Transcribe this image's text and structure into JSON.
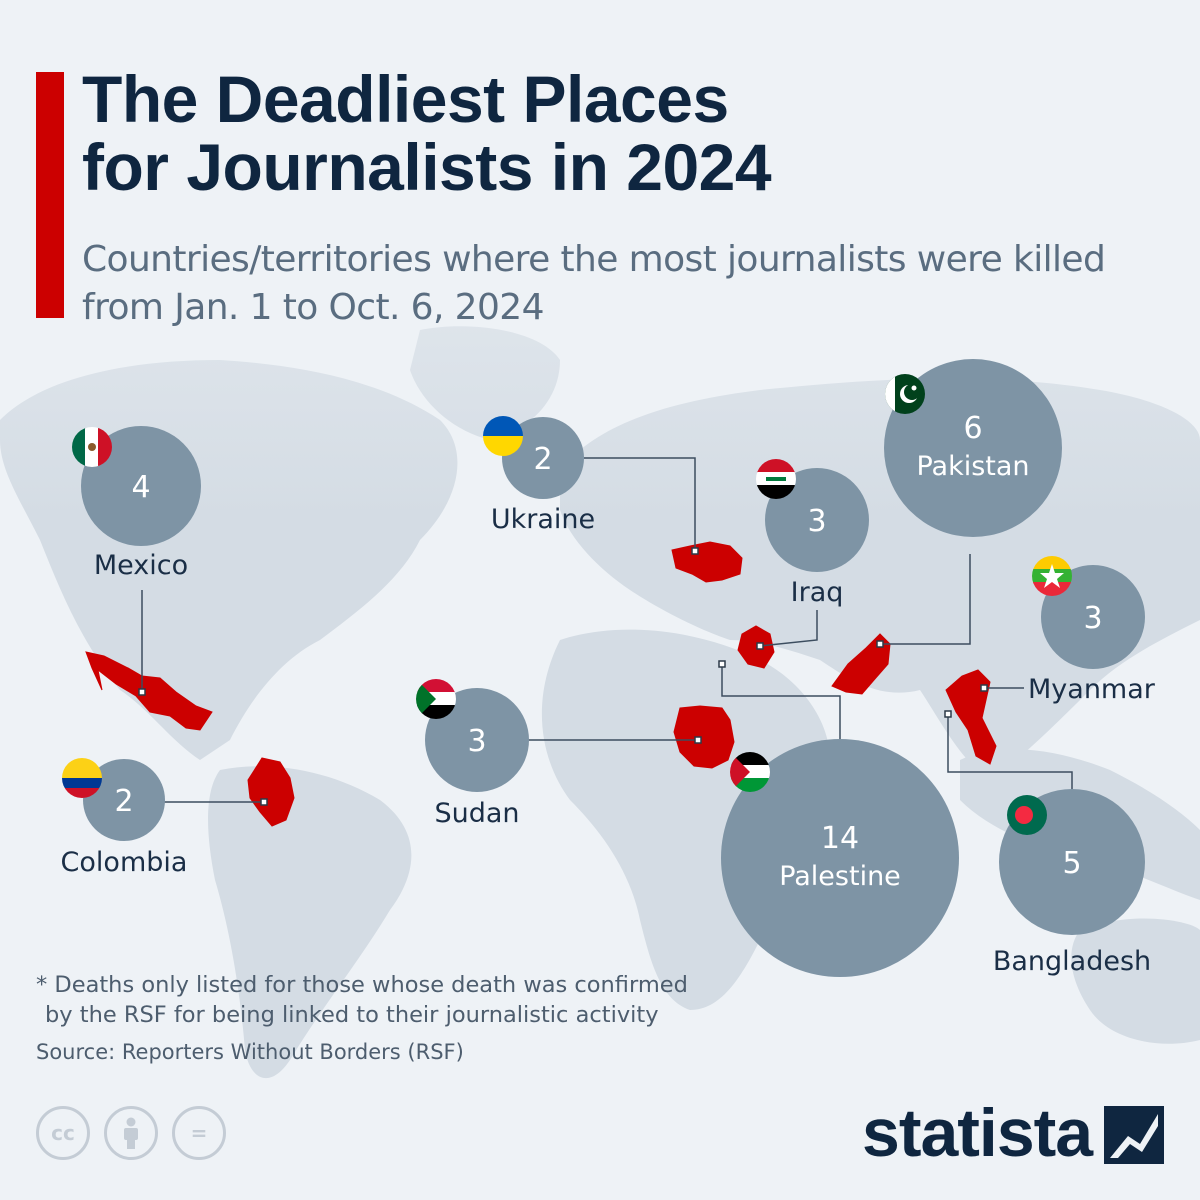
{
  "header": {
    "title_line1": "The Deadliest Places",
    "title_line2": "for Journalists in 2024",
    "subtitle_line1": "Countries/territories where the most journalists were killed",
    "subtitle_line2": "from Jan. 1 to Oct. 6, 2024"
  },
  "colors": {
    "accent": "#cc0000",
    "bubble": "#7e94a5",
    "highlight_country": "#cc0000",
    "land": "#d4dce4",
    "title": "#0f2640"
  },
  "countries": [
    {
      "name": "Mexico",
      "value": 4,
      "flag": "mexico-flag"
    },
    {
      "name": "Colombia",
      "value": 2,
      "flag": "colombia-flag"
    },
    {
      "name": "Ukraine",
      "value": 2,
      "flag": "ukraine-flag"
    },
    {
      "name": "Sudan",
      "value": 3,
      "flag": "sudan-flag"
    },
    {
      "name": "Iraq",
      "value": 3,
      "flag": "iraq-flag"
    },
    {
      "name": "Pakistan",
      "value": 6,
      "flag": "pakistan-flag"
    },
    {
      "name": "Palestine",
      "value": 14,
      "flag": "palestine-flag"
    },
    {
      "name": "Myanmar",
      "value": 3,
      "flag": "myanmar-flag"
    },
    {
      "name": "Bangladesh",
      "value": 5,
      "flag": "bangladesh-flag"
    }
  ],
  "footnote": {
    "line1": "* Deaths only listed for those whose death was confirmed",
    "line2": "by the RSF for being linked to their journalistic activity"
  },
  "source": "Source: Reporters Without Borders (RSF)",
  "license_icons": [
    "cc-icon",
    "attribution-icon",
    "no-derivatives-icon"
  ],
  "license_glyphs": {
    "cc": "cc",
    "no_derivatives": "="
  },
  "brand": {
    "name": "statista",
    "logo": "statista-logo-icon"
  }
}
